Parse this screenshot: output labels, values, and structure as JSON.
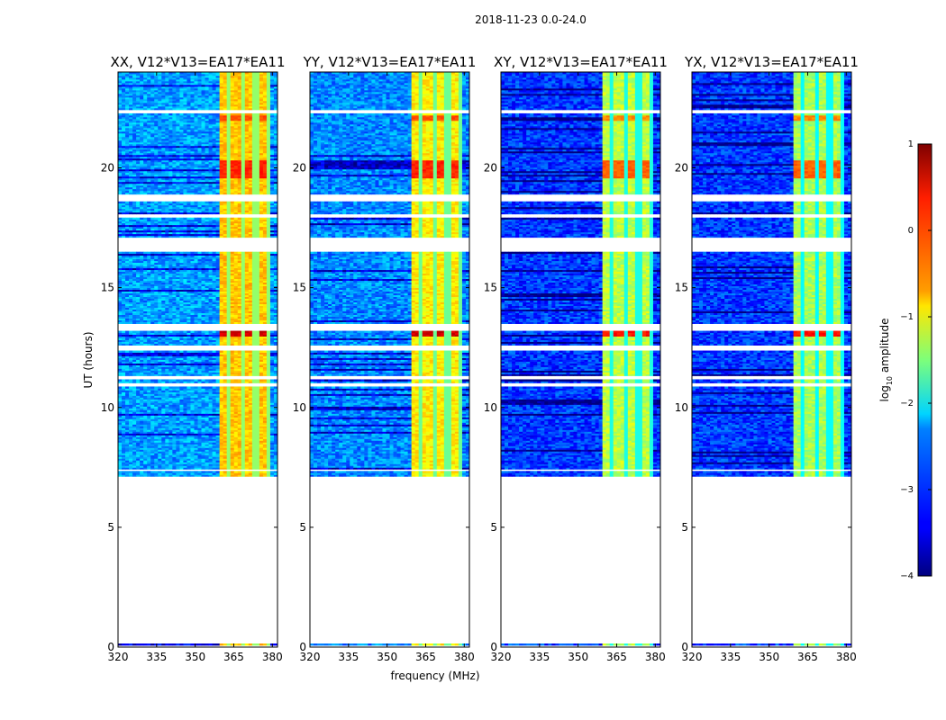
{
  "suptitle": "2018-11-23 0.0-24.0",
  "chart_data": {
    "type": "heatmap",
    "suptitle": "2018-11-23 0.0-24.0",
    "xlabel": "frequency (MHz)",
    "ylabel": "UT (hours)",
    "xlim": [
      320,
      382
    ],
    "ylim": [
      0,
      24
    ],
    "xticks": [
      320,
      335,
      350,
      365,
      380
    ],
    "yticks": [
      0,
      5,
      10,
      15,
      20
    ],
    "colorbar": {
      "label_main": "log",
      "label_sub": "10",
      "label_tail": " amplitude",
      "range": [
        -4,
        1
      ],
      "ticks": [
        -4,
        -3,
        -2,
        -1,
        0,
        1
      ],
      "tick_labels": [
        "−4",
        "−3",
        "−2",
        "−1",
        "0",
        "1"
      ],
      "colormap": "jet"
    },
    "panels": [
      {
        "title": "XX, V12*V13=EA17*EA11",
        "base_level": -2.6,
        "band_level": -0.6,
        "band_freq": [
          360,
          379
        ]
      },
      {
        "title": "YY, V12*V13=EA17*EA11",
        "base_level": -2.7,
        "band_level": -0.8,
        "band_freq": [
          360,
          379
        ]
      },
      {
        "title": "XY, V12*V13=EA17*EA11",
        "base_level": -3.1,
        "band_level": -1.2,
        "band_freq": [
          360,
          379
        ]
      },
      {
        "title": "YX, V12*V13=EA17*EA11",
        "base_level": -3.1,
        "band_level": -1.3,
        "band_freq": [
          360,
          379
        ]
      }
    ],
    "band_channel_gaps_MHz": [
      363.5,
      368.5,
      373.5,
      378.5
    ],
    "flagged_ut_ranges_hours": [
      [
        0.0,
        0.05
      ],
      [
        0.12,
        7.1
      ],
      [
        7.35,
        7.45
      ],
      [
        10.9,
        11.0
      ],
      [
        11.15,
        11.3
      ],
      [
        12.4,
        12.6
      ],
      [
        13.2,
        13.5
      ],
      [
        16.5,
        17.1
      ],
      [
        17.95,
        18.1
      ],
      [
        18.6,
        18.9
      ],
      [
        22.3,
        22.4
      ]
    ],
    "rfi_hotspots": [
      {
        "ut": [
          13.0,
          13.2
        ],
        "level": 0.6
      },
      {
        "ut": [
          19.6,
          20.3
        ],
        "level": 0.2
      },
      {
        "ut": [
          22.0,
          22.2
        ],
        "level": 0.0
      }
    ]
  }
}
